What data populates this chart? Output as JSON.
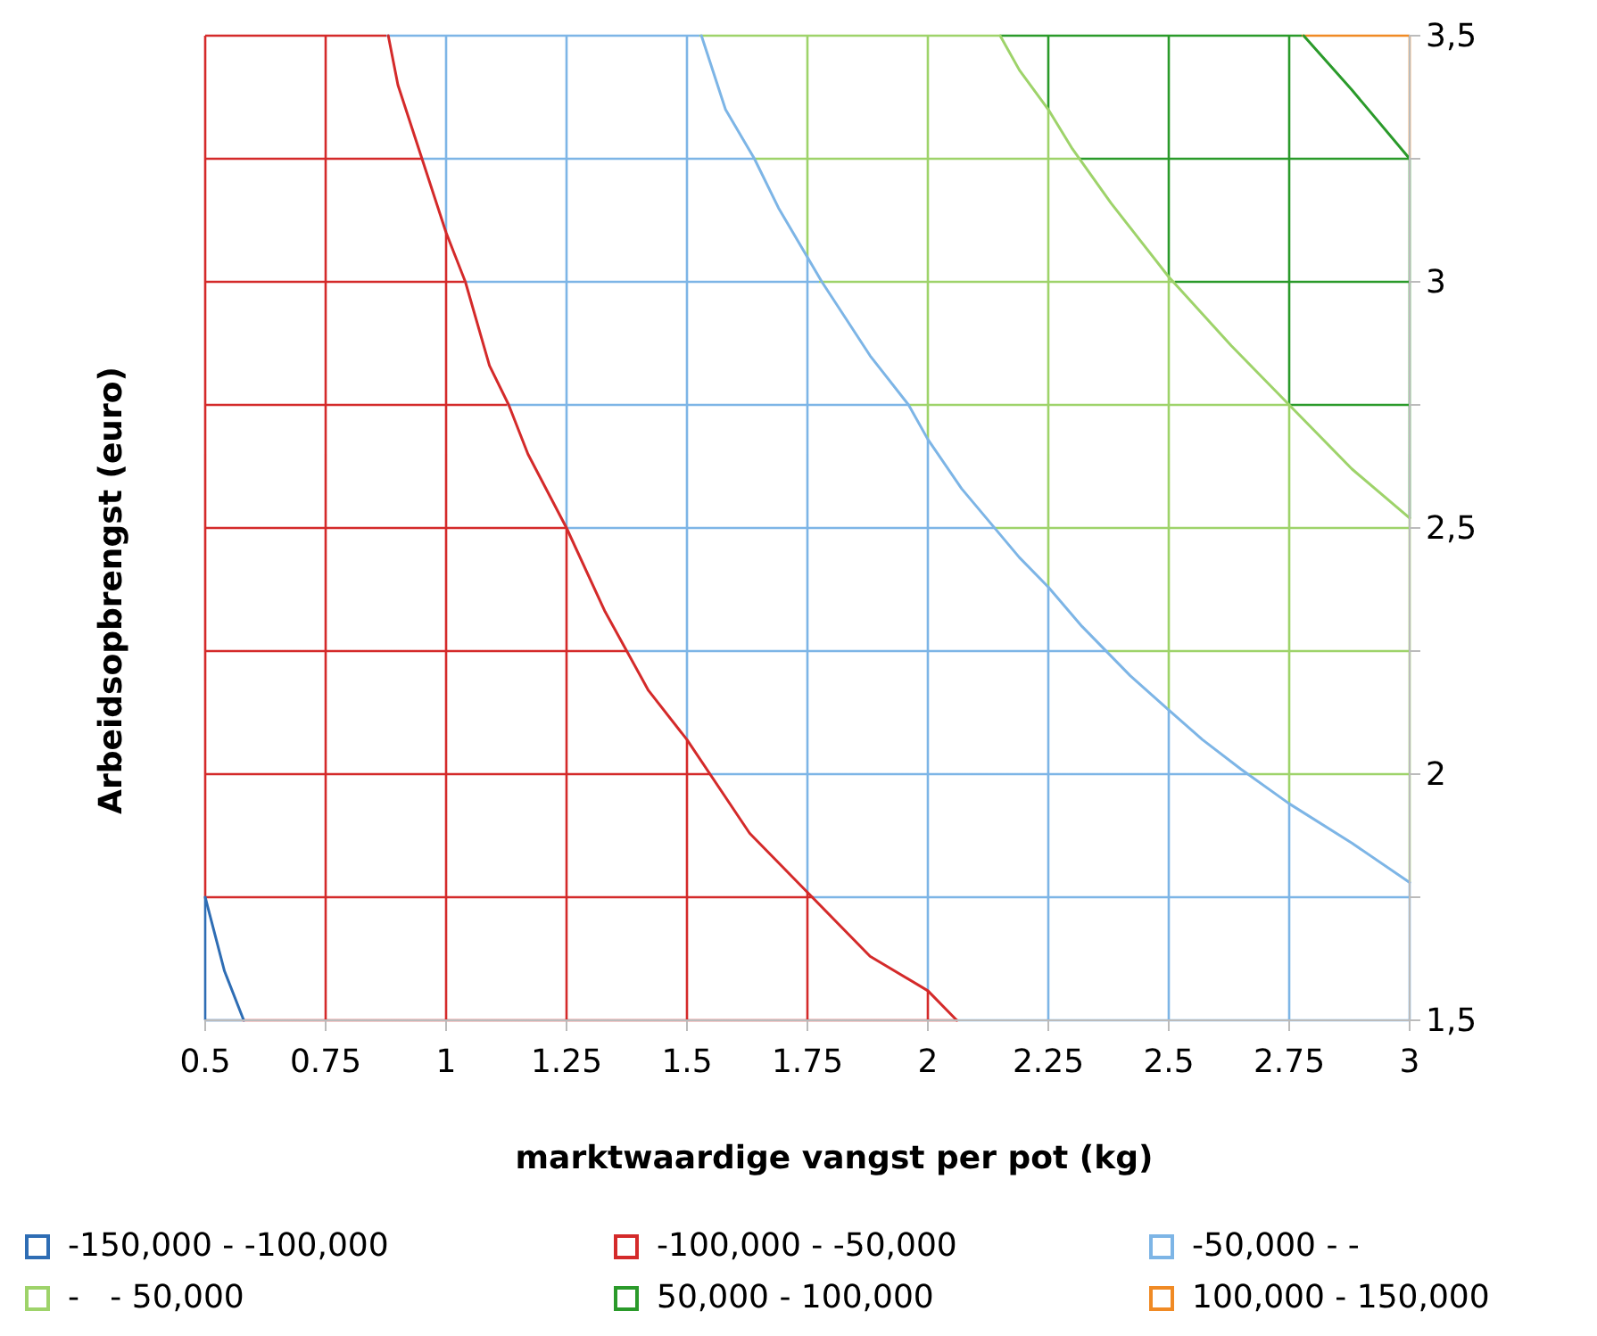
{
  "chart_data": {
    "type": "line",
    "xlabel": "marktwaardige vangst per pot (kg)",
    "ylabel": "Arbeidsopbrengst (euro)",
    "xlim": [
      0.5,
      3
    ],
    "ylim": [
      1.5,
      3.5
    ],
    "xticks": [
      0.5,
      0.75,
      1,
      1.25,
      1.5,
      1.75,
      2,
      2.25,
      2.5,
      2.75,
      3
    ],
    "yticks": [
      {
        "value": 1.5,
        "label": "1,5"
      },
      {
        "value": 1.75,
        "label": null
      },
      {
        "value": 2,
        "label": "2"
      },
      {
        "value": 2.25,
        "label": null
      },
      {
        "value": 2.5,
        "label": "2,5"
      },
      {
        "value": 2.75,
        "label": null
      },
      {
        "value": 3,
        "label": "3"
      },
      {
        "value": 3.25,
        "label": null
      },
      {
        "value": 3.5,
        "label": "3,5"
      }
    ],
    "grid": true,
    "legend": "bottom",
    "series": [
      {
        "name": "-150,000 - -100,000",
        "color": "#2e6db4",
        "x": [
          0.5,
          0.54,
          0.58
        ],
        "values": [
          1.75,
          1.6,
          1.5
        ]
      },
      {
        "name": "-100,000 - -50,000",
        "color": "#d42a2a",
        "x": [
          0.88,
          0.9,
          0.95,
          1,
          1.04,
          1.09,
          1.13,
          1.17,
          1.25,
          1.33,
          1.42,
          1.5,
          1.63,
          1.75,
          1.88,
          2,
          2.06
        ],
        "values": [
          3.5,
          3.4,
          3.25,
          3.1,
          3,
          2.83,
          2.75,
          2.65,
          2.5,
          2.33,
          2.17,
          2.07,
          1.88,
          1.76,
          1.63,
          1.56,
          1.5
        ]
      },
      {
        "name": "-50,000 - -",
        "color": "#7db5e6",
        "x": [
          1.53,
          1.58,
          1.64,
          1.69,
          1.78,
          1.88,
          1.96,
          2,
          2.07,
          2.19,
          2.25,
          2.32,
          2.42,
          2.5,
          2.57,
          2.65,
          2.75,
          2.88,
          3
        ],
        "values": [
          3.5,
          3.35,
          3.25,
          3.15,
          3,
          2.85,
          2.75,
          2.68,
          2.58,
          2.44,
          2.38,
          2.3,
          2.2,
          2.13,
          2.07,
          2.01,
          1.94,
          1.86,
          1.78
        ]
      },
      {
        "name": "-   - 50,000",
        "color": "#9ed36a",
        "x": [
          2.15,
          2.19,
          2.25,
          2.3,
          2.38,
          2.5,
          2.63,
          2.75,
          2.88,
          3
        ],
        "values": [
          3.5,
          3.43,
          3.35,
          3.27,
          3.16,
          3.01,
          2.87,
          2.75,
          2.62,
          2.52
        ]
      },
      {
        "name": "50,000 - 100,000",
        "color": "#2a9a2a",
        "x": [
          2.78,
          2.88,
          3
        ],
        "values": [
          3.5,
          3.39,
          3.25
        ]
      },
      {
        "name": "100,000 - 150,000",
        "color": "#f08a24"
      }
    ]
  }
}
